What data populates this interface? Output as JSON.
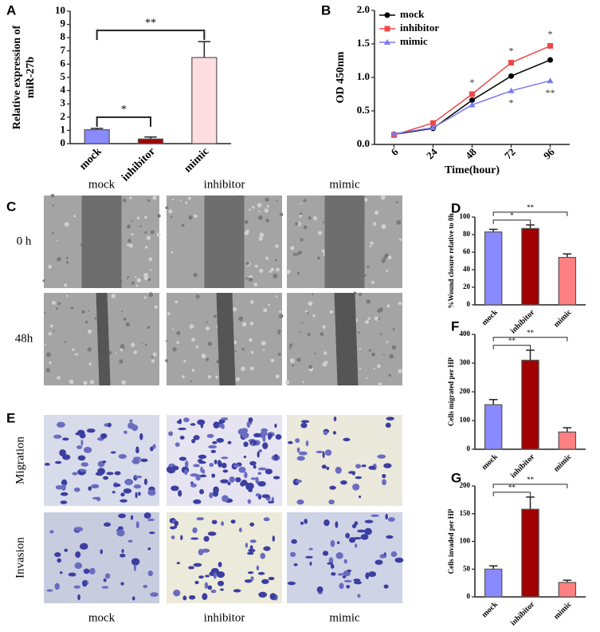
{
  "chart_data": [
    {
      "type": "bar",
      "panel": "A",
      "ylabel": [
        "Relative expression of",
        "miR-27b"
      ],
      "categories": [
        "mock",
        "inhibitor",
        "mimic"
      ],
      "values": [
        1.05,
        0.35,
        6.5
      ],
      "errors": [
        0.1,
        0.15,
        1.2
      ],
      "colors": [
        "#8a8aff",
        "#a00000",
        "#ffdde0"
      ],
      "ylim": [
        0,
        10
      ],
      "yticks": [
        0,
        1,
        2,
        3,
        4,
        5,
        6,
        7,
        8,
        9,
        10
      ],
      "annotations": [
        "*",
        "**"
      ]
    },
    {
      "type": "line",
      "panel": "B",
      "ylabel": "OD 450nm",
      "xlabel": "Time(hour)",
      "categories": [
        "6",
        "24",
        "48",
        "72",
        "96"
      ],
      "series": [
        {
          "name": "mock",
          "color": "#000000",
          "values": [
            0.15,
            0.24,
            0.66,
            1.02,
            1.26
          ],
          "significance": [
            null,
            null,
            null,
            null,
            null
          ]
        },
        {
          "name": "inhibitor",
          "color": "#f04848",
          "values": [
            0.14,
            0.32,
            0.75,
            1.22,
            1.47
          ],
          "significance": [
            null,
            null,
            "*",
            "*",
            "*"
          ]
        },
        {
          "name": "mimic",
          "color": "#7a7af0",
          "values": [
            0.16,
            0.25,
            0.59,
            0.8,
            0.95
          ],
          "significance": [
            null,
            null,
            null,
            "*",
            "**"
          ]
        }
      ],
      "ylim": [
        0,
        2
      ],
      "yticks": [
        {
          "value": 0,
          "label": "0.0"
        },
        {
          "value": 0.5,
          "label": "0.5"
        },
        {
          "value": 1,
          "label": "1.0"
        },
        {
          "value": 1.5,
          "label": "1.5"
        },
        {
          "value": 2,
          "label": "2.0"
        }
      ]
    },
    {
      "type": "bar",
      "panel": "D",
      "ylabel": "%Wound closure relative to 0h",
      "categories": [
        "mock",
        "inhibitor",
        "mimic"
      ],
      "values": [
        83,
        87,
        54
      ],
      "errors": [
        3,
        4,
        4
      ],
      "colors": [
        "#8a8aff",
        "#a00000",
        "#ff8080"
      ],
      "ylim": [
        0,
        100
      ],
      "yticks": [
        0,
        20,
        40,
        60,
        80,
        100
      ],
      "annotations": [
        "*",
        "**"
      ]
    },
    {
      "type": "bar",
      "panel": "F",
      "ylabel": "Cells migrated per HP",
      "categories": [
        "mock",
        "inhibitor",
        "mimic"
      ],
      "values": [
        155,
        310,
        60
      ],
      "errors": [
        18,
        35,
        15
      ],
      "colors": [
        "#8a8aff",
        "#a00000",
        "#ff8080"
      ],
      "ylim": [
        0,
        400
      ],
      "yticks": [
        0,
        100,
        200,
        300,
        400
      ],
      "annotations": [
        "**",
        "**"
      ]
    },
    {
      "type": "bar",
      "panel": "G",
      "ylabel": "Cells invaded per HP",
      "categories": [
        "mock",
        "inhibitor",
        "mimic"
      ],
      "values": [
        50,
        158,
        26
      ],
      "errors": [
        6,
        22,
        4
      ],
      "colors": [
        "#8a8aff",
        "#a00000",
        "#ff8080"
      ],
      "ylim": [
        0,
        200
      ],
      "yticks": [
        0,
        50,
        100,
        150,
        200
      ],
      "annotations": [
        "**",
        "**"
      ]
    }
  ],
  "image_panels": [
    {
      "panel": "C",
      "columns": [
        "mock",
        "inhibitor",
        "mimic"
      ],
      "rows": [
        "0 h",
        "48h"
      ]
    },
    {
      "panel": "E",
      "columns": [
        "mock",
        "inhibitor",
        "mimic"
      ],
      "rows": [
        "Migration",
        "Invasion"
      ]
    }
  ]
}
